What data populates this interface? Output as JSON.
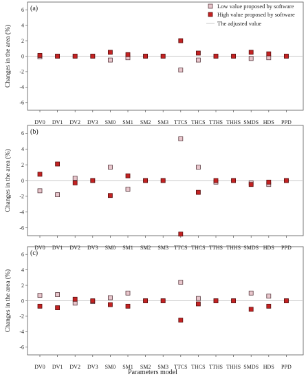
{
  "chart_data": {
    "type": "scatter",
    "xlabel": "Parameters model",
    "ylabel": "Changes in the area (%)",
    "categories": [
      "DV0",
      "DV1",
      "DV2",
      "DV3",
      "SM0",
      "SM1",
      "SM2",
      "SM3",
      "TTCS",
      "THCS",
      "TTHS",
      "THHS",
      "SMDS",
      "HDS",
      "PPD"
    ],
    "ylim": [
      -7,
      7
    ],
    "yticks": [
      6,
      4,
      2,
      0,
      -2,
      -4,
      -6
    ],
    "legend": {
      "position": "top-right",
      "entries": [
        "Low value proposed by software",
        "High value proposed by software",
        "The adjusted value"
      ]
    },
    "colors": {
      "low_fill": "#e8c6cc",
      "low_stroke": "#5a3a40",
      "high_fill": "#c42222",
      "high_stroke": "#5a1010",
      "adjusted_line": "#c8c8c8",
      "frame": "#555555"
    },
    "panels": [
      {
        "label": "(a)",
        "series": [
          {
            "name": "Low value proposed by software",
            "values": [
              -0.1,
              0,
              0,
              0,
              -0.5,
              -0.2,
              0,
              0,
              -1.8,
              -0.5,
              0,
              0,
              -0.3,
              -0.2,
              0
            ]
          },
          {
            "name": "High value proposed by software",
            "values": [
              0.1,
              0,
              0,
              0,
              0.5,
              0.2,
              0,
              0,
              2.0,
              0.4,
              0,
              0,
              0.5,
              0.3,
              0
            ]
          }
        ]
      },
      {
        "label": "(b)",
        "series": [
          {
            "name": "Low value proposed by software",
            "values": [
              -1.3,
              -1.8,
              0.3,
              0,
              1.7,
              -1.1,
              0,
              0,
              5.3,
              1.7,
              -0.2,
              0,
              -0.3,
              -0.5,
              0
            ]
          },
          {
            "name": "High value proposed by software",
            "values": [
              0.8,
              2.1,
              -0.3,
              0,
              -1.9,
              0.6,
              0,
              0,
              -6.8,
              -1.5,
              0,
              0,
              -0.5,
              -0.2,
              0
            ]
          }
        ]
      },
      {
        "label": "(c)",
        "series": [
          {
            "name": "Low value proposed by software",
            "values": [
              0.7,
              0.8,
              -0.3,
              -0.1,
              0.4,
              1.0,
              0,
              0,
              2.4,
              0.3,
              0,
              0,
              1.0,
              0.6,
              0
            ]
          },
          {
            "name": "High value proposed by software",
            "values": [
              -0.7,
              -0.9,
              0.2,
              0,
              -0.5,
              -0.7,
              0,
              0,
              -2.5,
              -0.4,
              0,
              0,
              -1.1,
              -0.7,
              0
            ]
          }
        ]
      }
    ]
  }
}
